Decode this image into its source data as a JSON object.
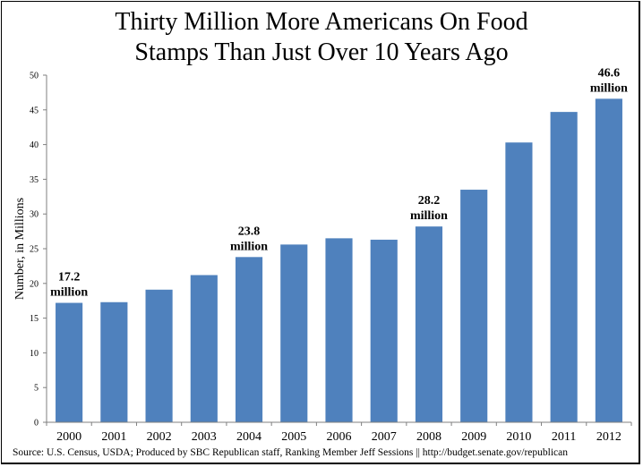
{
  "chart_data": {
    "type": "bar",
    "title_lines": [
      "Thirty Million More Americans On Food",
      "Stamps Than Just Over 10 Years Ago"
    ],
    "ylabel": "Number, in Millions",
    "xlabel": "",
    "ylim": [
      0,
      50
    ],
    "yticks": [
      0,
      5,
      10,
      15,
      20,
      25,
      30,
      35,
      40,
      45,
      50
    ],
    "categories": [
      "2000",
      "2001",
      "2002",
      "2003",
      "2004",
      "2005",
      "2006",
      "2007",
      "2008",
      "2009",
      "2010",
      "2011",
      "2012"
    ],
    "values": [
      17.2,
      17.3,
      19.1,
      21.2,
      23.8,
      25.6,
      26.5,
      26.3,
      28.2,
      33.5,
      40.3,
      44.7,
      46.6
    ],
    "bar_color": "#4F81BD",
    "grid": false,
    "annotations": [
      {
        "category": "2000",
        "lines": [
          "17.2",
          "million"
        ]
      },
      {
        "category": "2004",
        "lines": [
          "23.8",
          "million"
        ]
      },
      {
        "category": "2008",
        "lines": [
          "28.2",
          "million"
        ]
      },
      {
        "category": "2012",
        "lines": [
          "46.6",
          "million"
        ]
      }
    ]
  },
  "source": "Source: U.S. Census, USDA;  Produced by SBC  Republican staff, Ranking Member Jeff Sessions || http://budget.senate.gov/republican"
}
